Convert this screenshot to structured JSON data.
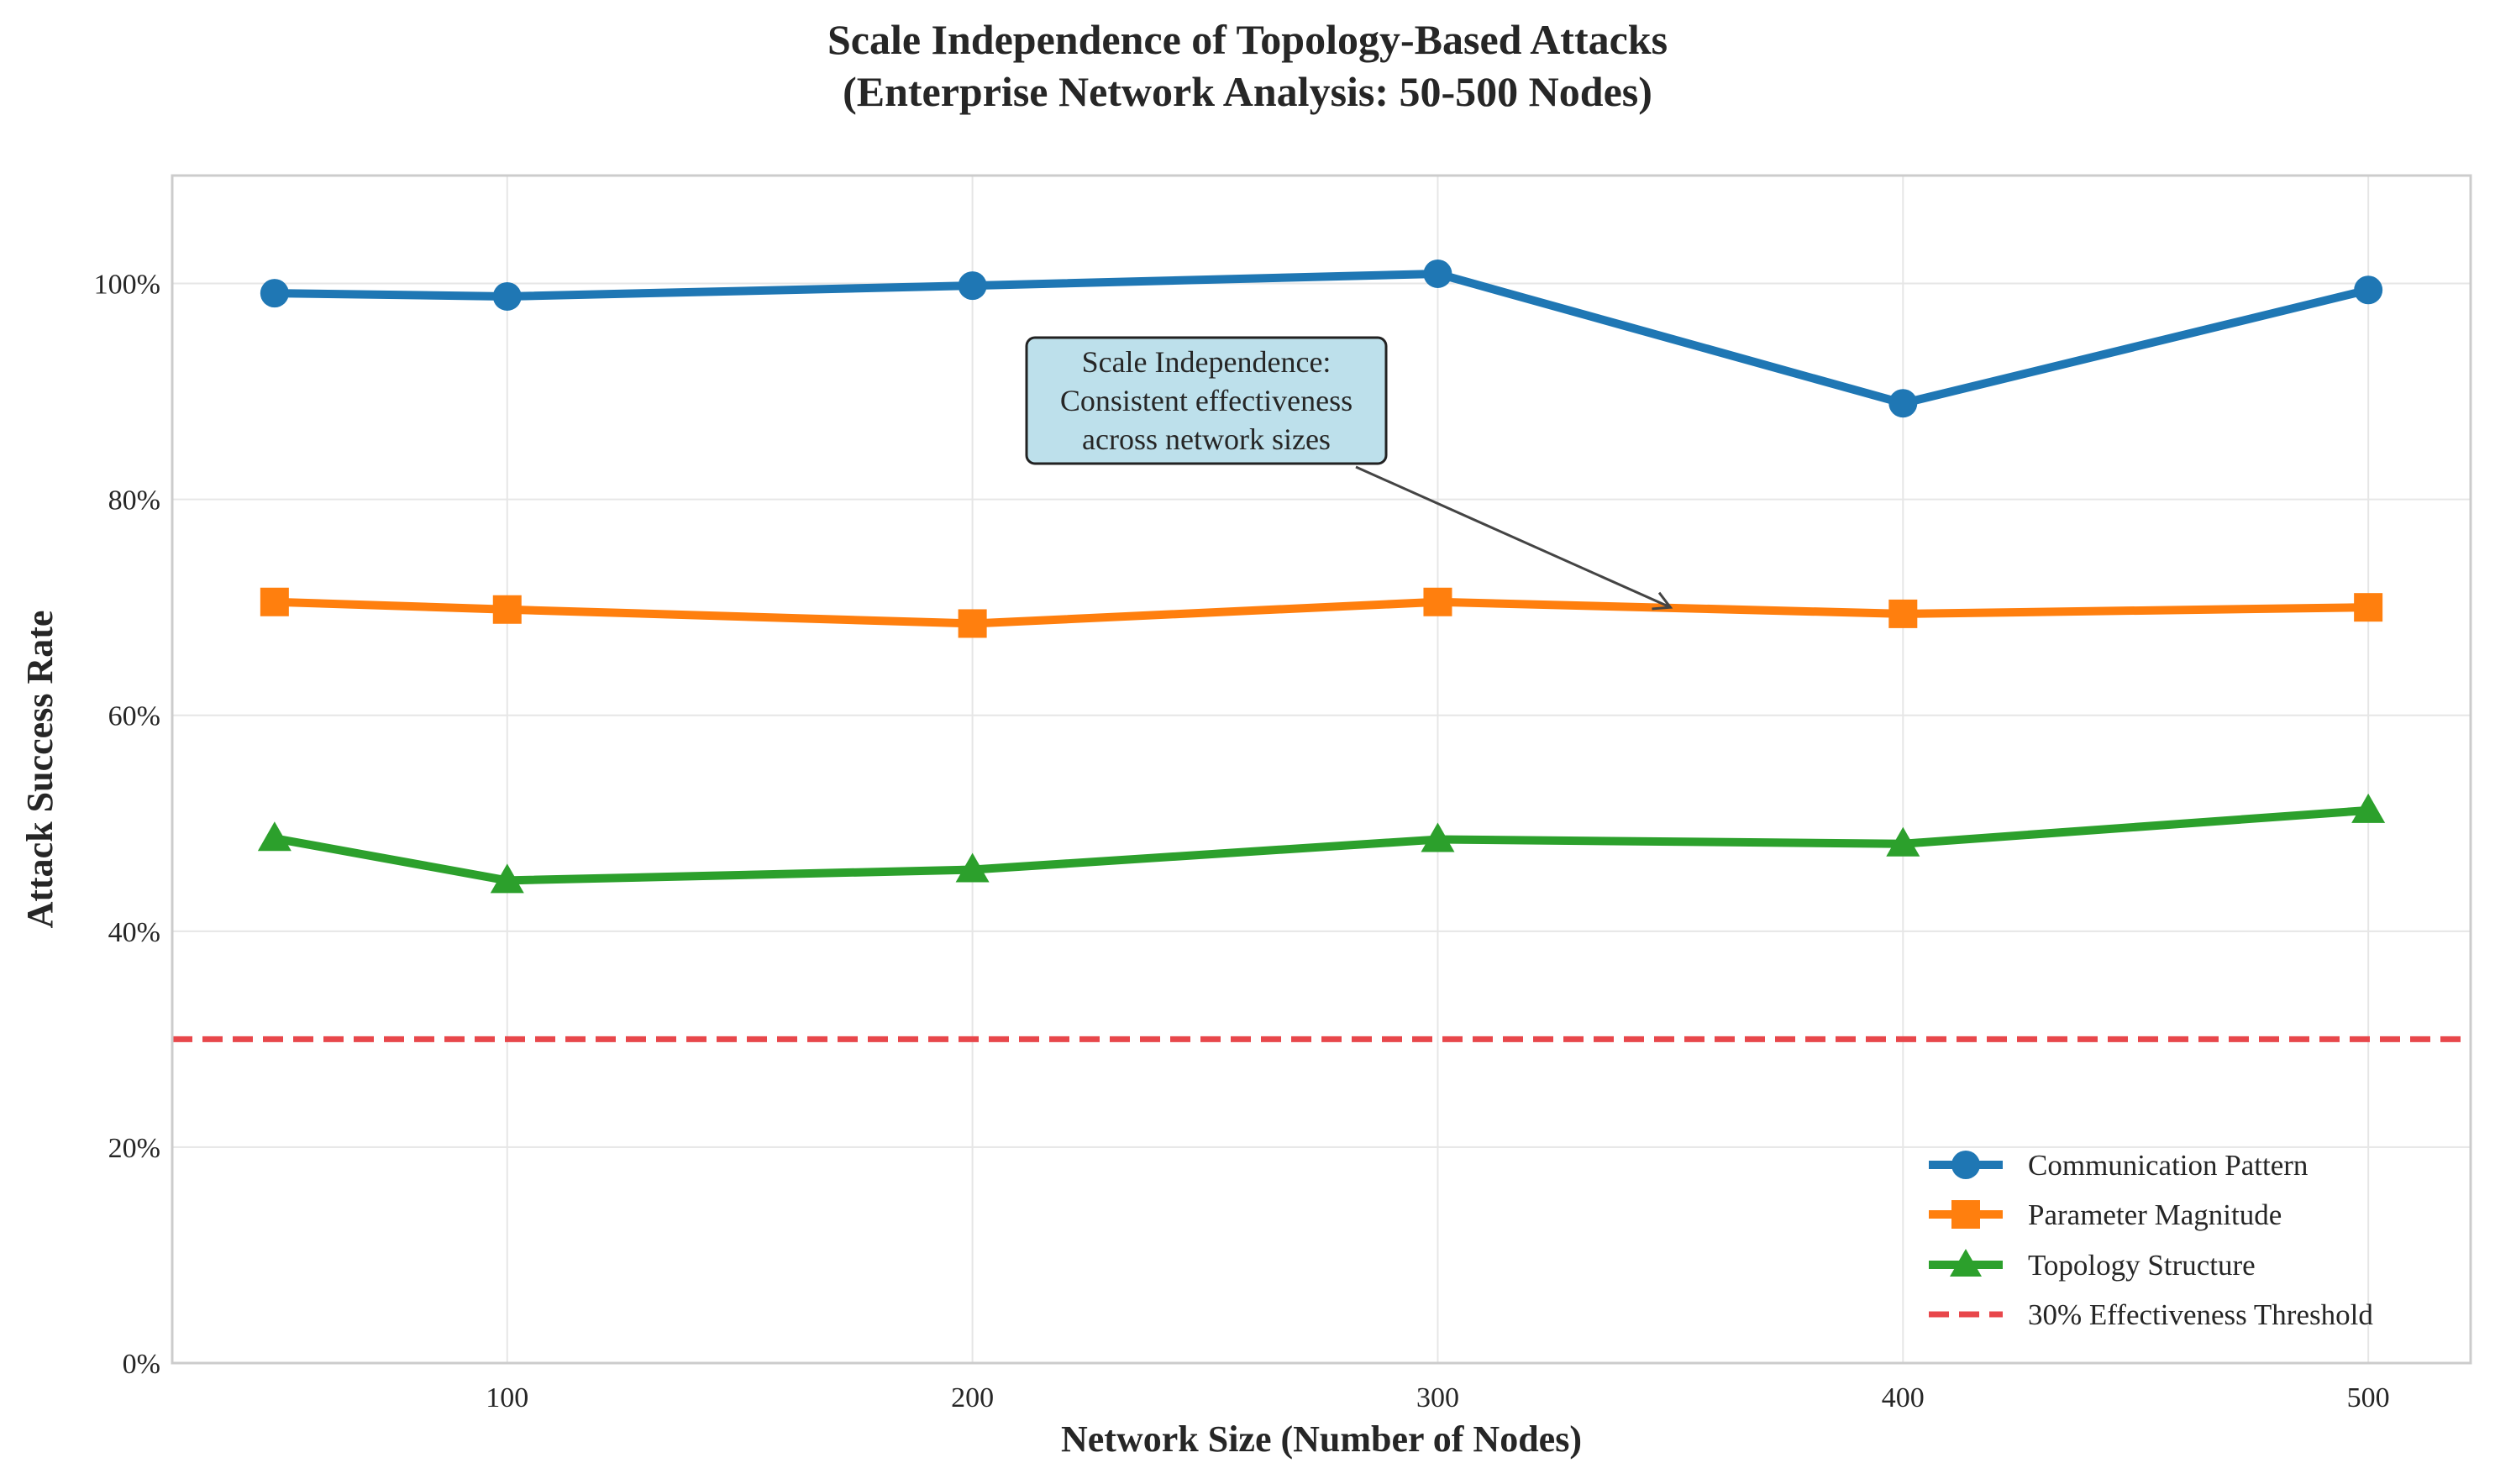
{
  "chart_data": {
    "type": "line",
    "title_line1": "Scale Independence of Topology-Based Attacks",
    "title_line2": "(Enterprise Network Analysis: 50-500 Nodes)",
    "xlabel": "Network Size (Number of Nodes)",
    "ylabel": "Attack Success Rate",
    "x": [
      50,
      100,
      200,
      300,
      400,
      500
    ],
    "xlim": [
      28,
      522
    ],
    "ylim": [
      0,
      1.1
    ],
    "xticks": [
      100,
      200,
      300,
      400,
      500
    ],
    "yticks": [
      {
        "value": 0,
        "label": "0%"
      },
      {
        "value": 0.2,
        "label": "20%"
      },
      {
        "value": 0.4,
        "label": "40%"
      },
      {
        "value": 0.6,
        "label": "60%"
      },
      {
        "value": 0.8,
        "label": "80%"
      },
      {
        "value": 1.0,
        "label": "100%"
      }
    ],
    "grid": true,
    "legend_position": "lower-right",
    "series": [
      {
        "name": "Communication Pattern",
        "color": "#1f77b4",
        "marker": "circle",
        "values": [
          0.991,
          0.988,
          0.998,
          1.009,
          0.889,
          0.994
        ]
      },
      {
        "name": "Parameter Magnitude",
        "color": "#ff7f0e",
        "marker": "square",
        "values": [
          0.705,
          0.698,
          0.685,
          0.705,
          0.694,
          0.7
        ]
      },
      {
        "name": "Topology Structure",
        "color": "#2ca02c",
        "marker": "triangle",
        "values": [
          0.486,
          0.447,
          0.457,
          0.485,
          0.481,
          0.512
        ]
      }
    ],
    "threshold": {
      "name": "30% Effectiveness Threshold",
      "value": 0.3,
      "color": "#e8474b",
      "style": "dashed"
    },
    "annotation": {
      "lines": [
        "Scale Independence:",
        "Consistent effectiveness",
        "across network sizes"
      ],
      "target": {
        "x": 350,
        "y": 0.7
      }
    }
  }
}
